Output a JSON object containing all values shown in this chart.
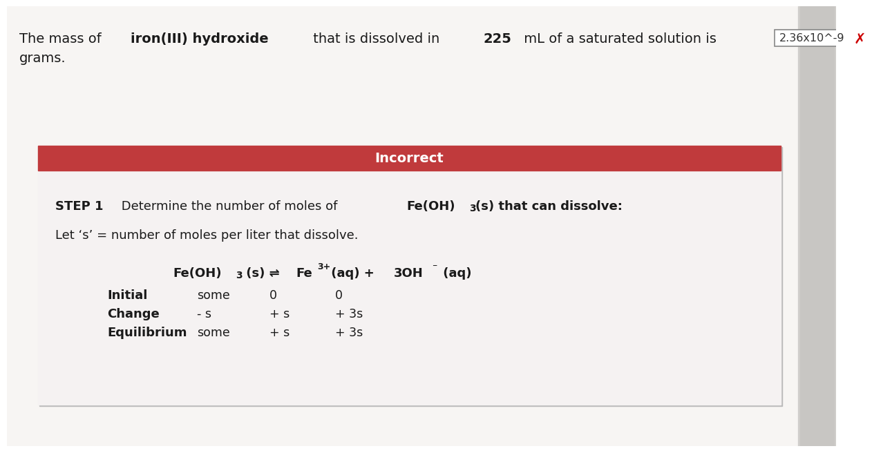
{
  "bg_color": "#e8e8e8",
  "page_bg_top": "#f0eeec",
  "answer_box_text": "2.36x10^-9",
  "x_color": "#cc0000",
  "grams_text": "grams.",
  "panel_bg": "#f5f2f2",
  "incorrect_bar_color": "#c03a3c",
  "incorrect_text": "Incorrect",
  "top_pieces": [
    [
      "The mass of ",
      false
    ],
    [
      "iron(III) hydroxide",
      true
    ],
    [
      " that is dissolved in ",
      false
    ],
    [
      "225",
      true
    ],
    [
      " mL of a saturated solution is",
      false
    ]
  ],
  "let_text": "Let ‘s’ = number of moles per liter that dissolve.",
  "row_labels": [
    "Initial",
    "Change",
    "Equilibrium"
  ],
  "col1": [
    "some",
    "- s",
    "some"
  ],
  "col2": [
    "0",
    "+ s",
    "+ s"
  ],
  "col3": [
    "0",
    "+ 3s",
    "+ 3s"
  ],
  "font_size_top": 14,
  "font_size_panel": 13
}
